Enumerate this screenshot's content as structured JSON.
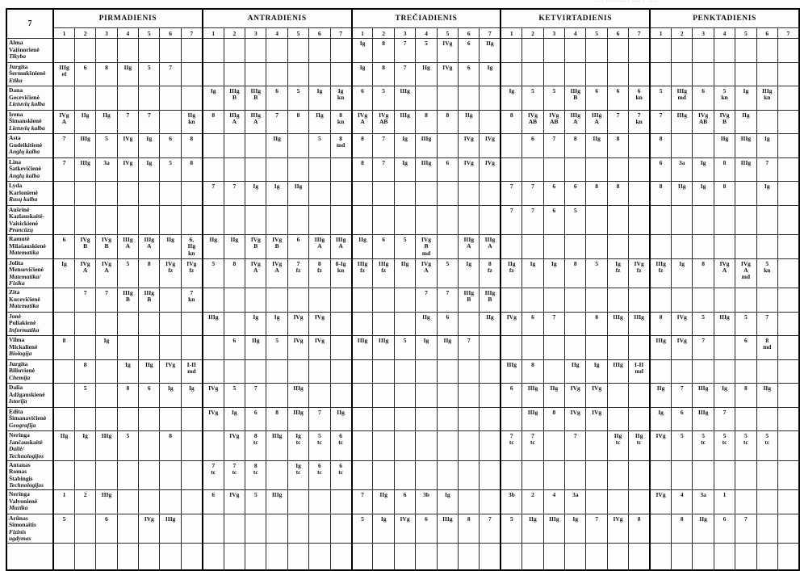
{
  "corner_note": "··· ········· ··· · ····",
  "table": {
    "class_label": "7",
    "days": [
      "PIRMADIENIS",
      "ANTRADIENIS",
      "TREČIADIENIS",
      "KETVIRTADIENIS",
      "PENKTADIENIS"
    ],
    "periods": [
      "1",
      "2",
      "3",
      "4",
      "5",
      "6",
      "7"
    ],
    "teachers": [
      {
        "name": "Alma\nVaišnorienė",
        "subject": "Tikyba",
        "days": [
          [
            "",
            "",
            "",
            "",
            "",
            "",
            ""
          ],
          [
            "",
            "",
            "",
            "",
            "",
            "",
            ""
          ],
          [
            "Ig",
            "8",
            "7",
            "5",
            "IVg",
            "6",
            "IIg"
          ],
          [
            "",
            "",
            "",
            "",
            "",
            "",
            ""
          ],
          [
            "",
            "",
            "",
            "",
            "",
            "",
            ""
          ]
        ]
      },
      {
        "name": "Jurgita\nŠermukšnienė",
        "subject": "Etika",
        "days": [
          [
            "IIIg\nef",
            "6",
            "8",
            "IIg",
            "5",
            "7",
            ""
          ],
          [
            "",
            "",
            "",
            "",
            "",
            "",
            ""
          ],
          [
            "Ig",
            "8",
            "7",
            "IIg",
            "IVg",
            "6",
            "Ig"
          ],
          [
            "",
            "",
            "",
            "",
            "",
            "",
            ""
          ],
          [
            "",
            "",
            "",
            "",
            "",
            "",
            ""
          ]
        ]
      },
      {
        "name": "Dana\nGecevičienė",
        "subject": "Lietuvių kalba",
        "days": [
          [
            "",
            "",
            "",
            "",
            "",
            "",
            ""
          ],
          [
            "Ig",
            "IIIg\nB",
            "IIIg\nB",
            "6",
            "5",
            "Ig",
            "Ig\nkn"
          ],
          [
            "6",
            "5",
            "IIIg",
            "",
            "",
            "",
            ""
          ],
          [
            "Ig",
            "5",
            "5",
            "IIIg\nB",
            "6",
            "6",
            "6\nkn"
          ],
          [
            "5",
            "IIIg\nmd",
            "6",
            "5\nkn",
            "Ig",
            "IIIg\nkn",
            ""
          ]
        ]
      },
      {
        "name": "Irena\nŠimanskienė",
        "subject": "Lietuvių kalba",
        "days": [
          [
            "IVg\nA",
            "IIg",
            "IIg",
            "7",
            "7",
            "",
            "IIg\nkn"
          ],
          [
            "8",
            "IIIg\nA",
            "IIIg\nA",
            "7",
            "8",
            "IIg",
            "8\nkn"
          ],
          [
            "IVg\nA",
            "IVg\nAB",
            "IIIg",
            "8",
            "8",
            "IIg",
            ""
          ],
          [
            "8",
            "IVg\nAB",
            "IVg\nAB",
            "IIIg\nA",
            "IIIg\nA",
            "7",
            "7\nkn"
          ],
          [
            "7",
            "IIIg",
            "IVg\nAB",
            "IVg\nB",
            "IIg",
            "",
            ""
          ]
        ]
      },
      {
        "name": "Asta\nGudeikitienė",
        "subject": "Anglų kalba",
        "days": [
          [
            "7",
            "IIIg",
            "5",
            "IVg",
            "Ig",
            "6",
            "8"
          ],
          [
            "",
            "",
            "",
            "IIg",
            "",
            "5",
            "8\nmd"
          ],
          [
            "8",
            "7",
            "Ig",
            "IIIg",
            "",
            "IVg",
            "IVg"
          ],
          [
            "",
            "6",
            "7",
            "8",
            "IIg",
            "8",
            ""
          ],
          [
            "8",
            "",
            "",
            "IIg",
            "IIIg",
            "Ig",
            ""
          ]
        ]
      },
      {
        "name": "Lina\nŠatkevičienė",
        "subject": "Anglų kalba",
        "days": [
          [
            "7",
            "IIIg",
            "3a",
            "IVg",
            "Ig",
            "5",
            "8"
          ],
          [
            "",
            "",
            "",
            "",
            "",
            "",
            ""
          ],
          [
            "8",
            "7",
            "Ig",
            "IIIg",
            "6",
            "IVg",
            "IVg"
          ],
          [
            "",
            "",
            "",
            "",
            "",
            "",
            ""
          ],
          [
            "6",
            "3a",
            "Ig",
            "8",
            "IIIg",
            "7",
            ""
          ]
        ]
      },
      {
        "name": "Lyda\nKarlonienė",
        "subject": "Rusų kalba",
        "days": [
          [
            "",
            "",
            "",
            "",
            "",
            "",
            ""
          ],
          [
            "7",
            "7",
            "Ig",
            "Ig",
            "IIg",
            "",
            ""
          ],
          [
            "",
            "",
            "",
            "",
            "",
            "",
            ""
          ],
          [
            "7",
            "7",
            "6",
            "6",
            "8",
            "8",
            ""
          ],
          [
            "8",
            "IIg",
            "Ig",
            "8",
            "",
            "Ig",
            ""
          ]
        ]
      },
      {
        "name": "Aušrinė\nKazlauskaitė-\nVaisickienė",
        "subject": "Prancūzų",
        "days": [
          [
            "",
            "",
            "",
            "",
            "",
            "",
            ""
          ],
          [
            "",
            "",
            "",
            "",
            "",
            "",
            ""
          ],
          [
            "",
            "",
            "",
            "",
            "",
            "",
            ""
          ],
          [
            "7",
            "7",
            "6",
            "5",
            "",
            "",
            ""
          ],
          [
            "",
            "",
            "",
            "",
            "",
            "",
            ""
          ]
        ]
      },
      {
        "name": "Ramutė\nMilašauskienė",
        "subject": "Matematika",
        "days": [
          [
            "6",
            "IVg\nB",
            "IVg\nB",
            "IIIg\nA",
            "IIIg\nA",
            "IIg",
            "6,\nIIg\nkn"
          ],
          [
            "IIg",
            "IIg",
            "IVg\nB",
            "IVg\nB",
            "6",
            "IIIg\nA",
            "IIIg\nA"
          ],
          [
            "IIg",
            "6",
            "5",
            "IVg\nB\nmd",
            "",
            "IIIg\nA",
            "IIIg\nA"
          ],
          [
            "",
            "",
            "",
            "",
            "",
            "",
            ""
          ],
          [
            "",
            "",
            "",
            "",
            "",
            "",
            ""
          ]
        ]
      },
      {
        "name": "Jolita\nMensevičienė",
        "subject": "Matematika/\nFizika",
        "days": [
          [
            "Ig",
            "IVg\nA",
            "IVg\nA",
            "5",
            "8",
            "IVg\nfz",
            "IVg\nfz"
          ],
          [
            "5",
            "8",
            "IVg\nA",
            "IVg\nA",
            "7\nfz",
            "8\nfz",
            "8-Ig\nkn"
          ],
          [
            "IIIg\nfz",
            "IIIg\nfz",
            "IIg",
            "IVg\nA",
            "5",
            "Ig",
            "8\nfz"
          ],
          [
            "IIg\nfz",
            "Ig",
            "Ig",
            "8",
            "5",
            "Ig\nfz",
            "IVg\nfz"
          ],
          [
            "IIIg\nfz",
            "Ig",
            "8",
            "IVg\nA",
            "IVg\nA\nmd",
            "5\nkn",
            ""
          ]
        ]
      },
      {
        "name": "Zita\nKucevičienė",
        "subject": "Matematika",
        "days": [
          [
            "",
            "7",
            "7",
            "IIIg\nB",
            "IIIg\nB",
            "",
            "7\nkn"
          ],
          [
            "",
            "",
            "",
            "",
            "",
            "",
            ""
          ],
          [
            "",
            "",
            "",
            "7",
            "7",
            "IIIg\nB",
            "IIIg\nB"
          ],
          [
            "",
            "",
            "",
            "",
            "",
            "",
            ""
          ],
          [
            "",
            "",
            "",
            "",
            "",
            "",
            ""
          ]
        ]
      },
      {
        "name": "Jonė\nPoliakienė",
        "subject": "Informatika",
        "days": [
          [
            "",
            "",
            "",
            "",
            "",
            "",
            ""
          ],
          [
            "IIIg",
            "",
            "Ig",
            "Ig",
            "IVg",
            "IVg",
            ""
          ],
          [
            "",
            "",
            "",
            "IIg",
            "6",
            "",
            "IIg"
          ],
          [
            "IVg",
            "6",
            "7",
            "",
            "8",
            "IIIg",
            "IIIg"
          ],
          [
            "8",
            "IVg",
            "5",
            "IIIg",
            "5",
            "7",
            ""
          ]
        ]
      },
      {
        "name": "Vilma\nMickalienė",
        "subject": "Biologija",
        "days": [
          [
            "8",
            "",
            "Ig",
            "",
            "",
            "",
            ""
          ],
          [
            "",
            "6",
            "IIg",
            "5",
            "IVg",
            "IVg",
            ""
          ],
          [
            "IIIg",
            "IIIg",
            "5",
            "Ig",
            "IIg",
            "7",
            ""
          ],
          [
            "",
            "",
            "",
            "",
            "",
            "",
            ""
          ],
          [
            "IIIg",
            "IVg",
            "7",
            "",
            "6",
            "8\nmd",
            ""
          ]
        ]
      },
      {
        "name": "Jurgita\nBiliuvienė",
        "subject": "Chemija",
        "days": [
          [
            "",
            "8",
            "",
            "Ig",
            "IIg",
            "IVg",
            "I-II\nmd"
          ],
          [
            "",
            "",
            "",
            "",
            "",
            "",
            ""
          ],
          [
            "",
            "",
            "",
            "",
            "",
            "",
            ""
          ],
          [
            "IIIg",
            "8",
            "",
            "IIg",
            "Ig",
            "IIIg",
            "I-II\nmd"
          ],
          [
            "",
            "",
            "",
            "",
            "",
            "",
            ""
          ]
        ]
      },
      {
        "name": "Dalia\nAdžgauskienė",
        "subject": "Istorija",
        "days": [
          [
            "",
            "5",
            "",
            "8",
            "6",
            "Ig",
            "Ig"
          ],
          [
            "IVg",
            "5",
            "7",
            "",
            "IIIg",
            "",
            ""
          ],
          [
            "",
            "",
            "",
            "",
            "",
            "",
            ""
          ],
          [
            "6",
            "IIIg",
            "IIg",
            "IVg",
            "IVg",
            "",
            ""
          ],
          [
            "IIg",
            "7",
            "IIIg",
            "Ig",
            "8",
            "IIg",
            ""
          ]
        ]
      },
      {
        "name": "Edita\nŠimanavičienė",
        "subject": "Geografija",
        "days": [
          [
            "",
            "",
            "",
            "",
            "",
            "",
            ""
          ],
          [
            "IVg",
            "Ig",
            "6",
            "8",
            "IIIg",
            "7",
            "IIg"
          ],
          [
            "",
            "",
            "",
            "",
            "",
            "",
            ""
          ],
          [
            "",
            "IIIg",
            "8",
            "IVg",
            "IVg",
            "",
            ""
          ],
          [
            "Ig",
            "6",
            "IIIg",
            "7",
            "",
            "",
            ""
          ]
        ]
      },
      {
        "name": "Neringa\nJančauskaitė",
        "subject": "Dailė/\nTechnologijos",
        "days": [
          [
            "IIg",
            "Ig",
            "IIIg",
            "5",
            "",
            "8",
            ""
          ],
          [
            "",
            "IVg",
            "8\ntc",
            "IIIg",
            "Ig\ntc",
            "5\ntc",
            "6\ntc"
          ],
          [
            "",
            "",
            "",
            "",
            "",
            "",
            ""
          ],
          [
            "7\ntc",
            "7\ntc",
            "",
            "7",
            "",
            "IIg\ntc",
            "IIg\ntc"
          ],
          [
            "IVg",
            "5",
            "5\ntc",
            "5\ntc",
            "5\ntc",
            "5\ntc",
            ""
          ]
        ]
      },
      {
        "name": "Antanas\nRomas\nŠtabingis",
        "subject": "Technologijos",
        "days": [
          [
            "",
            "",
            "",
            "",
            "",
            "",
            ""
          ],
          [
            "7\ntc",
            "7\ntc",
            "8\ntc",
            "",
            "Ig\ntc",
            "6\ntc",
            "6\ntc"
          ],
          [
            "",
            "",
            "",
            "",
            "",
            "",
            ""
          ],
          [
            "",
            "",
            "",
            "",
            "",
            "",
            ""
          ],
          [
            "",
            "",
            "",
            "",
            "",
            "",
            ""
          ]
        ]
      },
      {
        "name": "Neringa\nValvonienė",
        "subject": "Muzika",
        "days": [
          [
            "1",
            "2",
            "IIIg",
            "",
            "",
            "",
            ""
          ],
          [
            "6",
            "IVg",
            "5",
            "IIIg",
            "",
            "",
            ""
          ],
          [
            "7",
            "IIg",
            "6",
            "3b",
            "Ig",
            "",
            ""
          ],
          [
            "3b",
            "2",
            "4",
            "3a",
            "",
            "",
            ""
          ],
          [
            "IVg",
            "4",
            "3a",
            "1",
            "",
            "",
            ""
          ]
        ]
      },
      {
        "name": "Arūnas\nSimonaitis",
        "subject": "Fizinis\nugdymas",
        "days": [
          [
            "5",
            "",
            "6",
            "",
            "IVg",
            "IIIg",
            ""
          ],
          [
            "",
            "",
            "",
            "",
            "",
            "",
            ""
          ],
          [
            "5",
            "Ig",
            "IVg",
            "6",
            "IIIg",
            "8",
            "7"
          ],
          [
            "5",
            "IIg",
            "IIIg",
            "Ig",
            "7",
            "IVg",
            "8"
          ],
          [
            "",
            "8",
            "IIg",
            "6",
            "7",
            "",
            ""
          ]
        ]
      }
    ]
  }
}
